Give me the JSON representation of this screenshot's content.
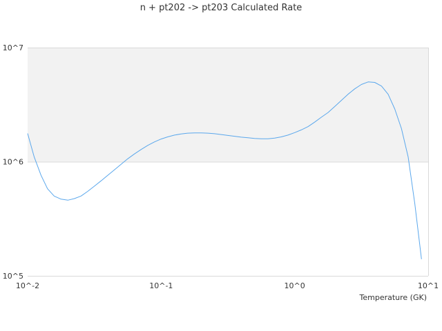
{
  "chart_data": {
    "type": "line",
    "title": "n + pt202 -> pt203 Calculated Rate",
    "xlabel": "Temperature (GK)",
    "ylabel": "",
    "x_scale": "log",
    "y_scale": "log",
    "xlim": [
      0.01,
      10
    ],
    "ylim": [
      100000,
      10000000
    ],
    "x_tick_labels": [
      "10^-2",
      "10^-1",
      "10^0",
      "10^1"
    ],
    "y_tick_labels": [
      "10^5",
      "10^6",
      "10^7"
    ],
    "grid": true,
    "legend": "none",
    "colors": {
      "line": "#5aa7ec",
      "band": "#f2f2f2",
      "grid": "#d9d9d9"
    },
    "series": [
      {
        "color": "#5aa7ec",
        "x": [
          0.01,
          0.0112,
          0.0126,
          0.0141,
          0.0158,
          0.0178,
          0.02,
          0.0224,
          0.0251,
          0.0282,
          0.0316,
          0.0355,
          0.0398,
          0.0447,
          0.0501,
          0.0562,
          0.0631,
          0.0708,
          0.0794,
          0.0891,
          0.1,
          0.112,
          0.126,
          0.141,
          0.158,
          0.178,
          0.2,
          0.224,
          0.251,
          0.282,
          0.316,
          0.355,
          0.398,
          0.447,
          0.501,
          0.562,
          0.631,
          0.708,
          0.794,
          0.891,
          1.0,
          1.12,
          1.26,
          1.41,
          1.58,
          1.78,
          2.0,
          2.24,
          2.51,
          2.82,
          3.16,
          3.55,
          3.98,
          4.47,
          5.01,
          5.62,
          6.31,
          7.08,
          7.94,
          8.91
        ],
        "y": [
          1770000,
          1100000,
          760000,
          580000,
          500000,
          470000,
          460000,
          475000,
          500000,
          550000,
          610000,
          680000,
          760000,
          850000,
          950000,
          1060000,
          1170000,
          1280000,
          1390000,
          1490000,
          1580000,
          1650000,
          1710000,
          1750000,
          1780000,
          1790000,
          1790000,
          1780000,
          1760000,
          1730000,
          1700000,
          1670000,
          1640000,
          1620000,
          1600000,
          1590000,
          1590000,
          1610000,
          1650000,
          1710000,
          1800000,
          1900000,
          2030000,
          2220000,
          2450000,
          2700000,
          3050000,
          3450000,
          3900000,
          4350000,
          4750000,
          5000000,
          4950000,
          4600000,
          3900000,
          2900000,
          1950000,
          1100000,
          430000,
          140000
        ]
      }
    ]
  }
}
